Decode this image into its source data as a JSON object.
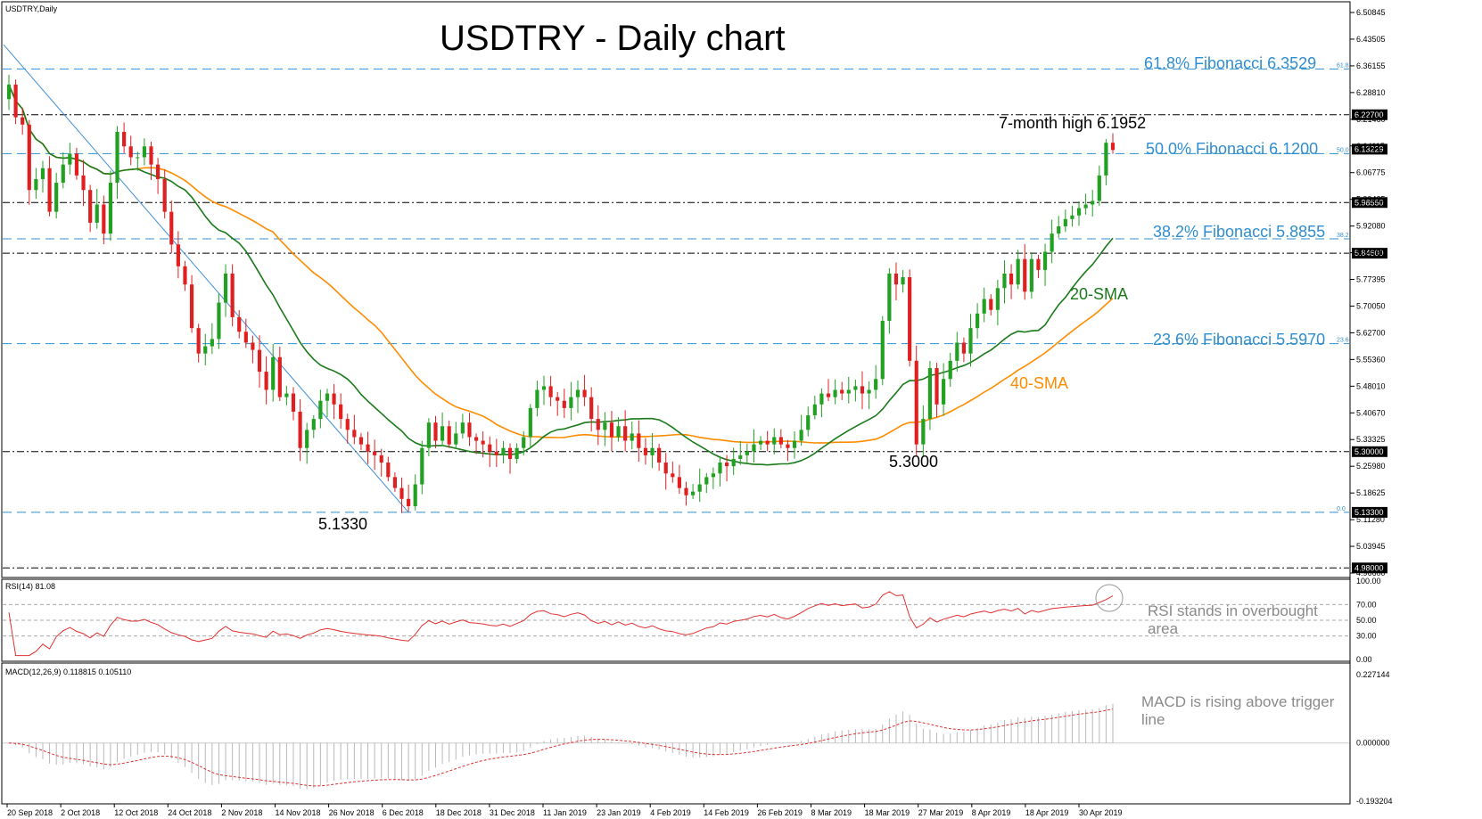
{
  "symbol_label": "USDTRY,Daily",
  "title": "USDTRY - Daily chart",
  "colors": {
    "bull": "#22a022",
    "bear": "#e02020",
    "sma20": "#1a7a1a",
    "sma40": "#ff8c00",
    "fib": "#2f8ecf",
    "rsi": "#e03030",
    "macd": "#e03030",
    "macd_hist": "#b8b8b8",
    "trend": "#3f8fd8"
  },
  "fib_levels": [
    {
      "pct": "61.8",
      "value": 6.3529,
      "label": "61.8% Fibonacci 6.3529"
    },
    {
      "pct": "50.0",
      "value": 6.12,
      "label": "50.0% Fibonacci 6.1200"
    },
    {
      "pct": "38.2",
      "value": 5.8855,
      "label": "38.2% Fibonacci 5.8855"
    },
    {
      "pct": "23.6",
      "value": 5.597,
      "label": "23.6% Fibonacci 5.5970"
    },
    {
      "pct": "0.0",
      "value": 5.133,
      "label": ""
    }
  ],
  "hlines": [
    {
      "value": 6.227,
      "label": "6.22700"
    },
    {
      "value": 5.9855,
      "label": "5.98550"
    },
    {
      "value": 5.846,
      "label": "5.84600"
    },
    {
      "value": 5.3,
      "label": "5.30000"
    },
    {
      "value": 5.133,
      "label": "5.13300"
    },
    {
      "value": 4.98,
      "label": "4.98000"
    }
  ],
  "annotations": {
    "high": "7-month high 6.1952",
    "low1": "5.1330",
    "low2": "5.3000",
    "sma20": "20-SMA",
    "sma40": "40-SMA",
    "rsi_note_line1": "RSI stands in overbought",
    "rsi_note_line2": "area",
    "macd_note_line1": "MACD is rising above trigger",
    "macd_note_line2": "line"
  },
  "current_price_label": "6.13229",
  "rsi_label": "RSI(14) 81.08",
  "macd_label": "MACD(12,26,9) 0.118815 0.105110",
  "chart_data": {
    "type": "candlestick",
    "title": "USDTRY - Daily chart",
    "y_ticks": [
      "6.50845",
      "6.43505",
      "6.36155",
      "6.28810",
      "6.21460",
      "6.14115",
      "6.06775",
      "5.99425",
      "5.92080",
      "5.84730",
      "5.77395",
      "5.70050",
      "5.62700",
      "5.55360",
      "5.48010",
      "5.40670",
      "5.33325",
      "5.25980",
      "5.18625",
      "5.11280",
      "5.03945",
      "4.96600"
    ],
    "ylim": [
      4.96,
      6.52
    ],
    "x_labels": [
      "20 Sep 2018",
      "2 Oct 2018",
      "12 Oct 2018",
      "24 Oct 2018",
      "2 Nov 2018",
      "14 Nov 2018",
      "26 Nov 2018",
      "6 Dec 2018",
      "18 Dec 2018",
      "31 Dec 2018",
      "11 Jan 2019",
      "23 Jan 2019",
      "4 Feb 2019",
      "14 Feb 2019",
      "26 Feb 2019",
      "8 Mar 2019",
      "18 Mar 2019",
      "27 Mar 2019",
      "8 Apr 2019",
      "18 Apr 2019",
      "30 Apr 2019"
    ],
    "closes": [
      6.31,
      6.22,
      6.2,
      6.02,
      6.05,
      6.08,
      5.96,
      6.04,
      6.09,
      6.12,
      6.06,
      6.02,
      5.93,
      5.98,
      5.9,
      6.04,
      6.18,
      6.14,
      6.11,
      6.11,
      6.14,
      6.09,
      6.05,
      5.96,
      5.87,
      5.81,
      5.76,
      5.64,
      5.57,
      5.59,
      5.61,
      5.71,
      5.79,
      5.67,
      5.63,
      5.6,
      5.58,
      5.52,
      5.47,
      5.56,
      5.45,
      5.46,
      5.41,
      5.31,
      5.36,
      5.39,
      5.44,
      5.46,
      5.43,
      5.39,
      5.36,
      5.34,
      5.32,
      5.3,
      5.29,
      5.27,
      5.23,
      5.2,
      5.17,
      5.15,
      5.21,
      5.31,
      5.38,
      5.33,
      5.37,
      5.32,
      5.35,
      5.38,
      5.34,
      5.33,
      5.32,
      5.3,
      5.29,
      5.31,
      5.28,
      5.31,
      5.34,
      5.42,
      5.47,
      5.48,
      5.45,
      5.44,
      5.42,
      5.45,
      5.47,
      5.45,
      5.39,
      5.36,
      5.38,
      5.34,
      5.37,
      5.33,
      5.35,
      5.31,
      5.29,
      5.31,
      5.27,
      5.24,
      5.23,
      5.2,
      5.18,
      5.19,
      5.21,
      5.23,
      5.24,
      5.27,
      5.26,
      5.28,
      5.29,
      5.3,
      5.32,
      5.33,
      5.32,
      5.34,
      5.32,
      5.31,
      5.33,
      5.36,
      5.4,
      5.43,
      5.46,
      5.45,
      5.47,
      5.46,
      5.47,
      5.48,
      5.46,
      5.47,
      5.5,
      5.66,
      5.79,
      5.76,
      5.78,
      5.55,
      5.32,
      5.39,
      5.53,
      5.43,
      5.5,
      5.55,
      5.6,
      5.57,
      5.64,
      5.68,
      5.72,
      5.69,
      5.75,
      5.79,
      5.76,
      5.83,
      5.74,
      5.83,
      5.8,
      5.85,
      5.9,
      5.92,
      5.94,
      5.95,
      5.97,
      5.98,
      5.99,
      6.06,
      6.15,
      6.13
    ],
    "sma20_last": 5.87,
    "sma40_last": 5.71,
    "rsi": {
      "levels": [
        100,
        70,
        50,
        30,
        0
      ],
      "last": 81.08
    },
    "macd": {
      "levels": [
        "0.227144",
        "0.000000",
        "-0.193204"
      ],
      "macd_last": 0.118815,
      "signal_last": 0.10511
    }
  }
}
